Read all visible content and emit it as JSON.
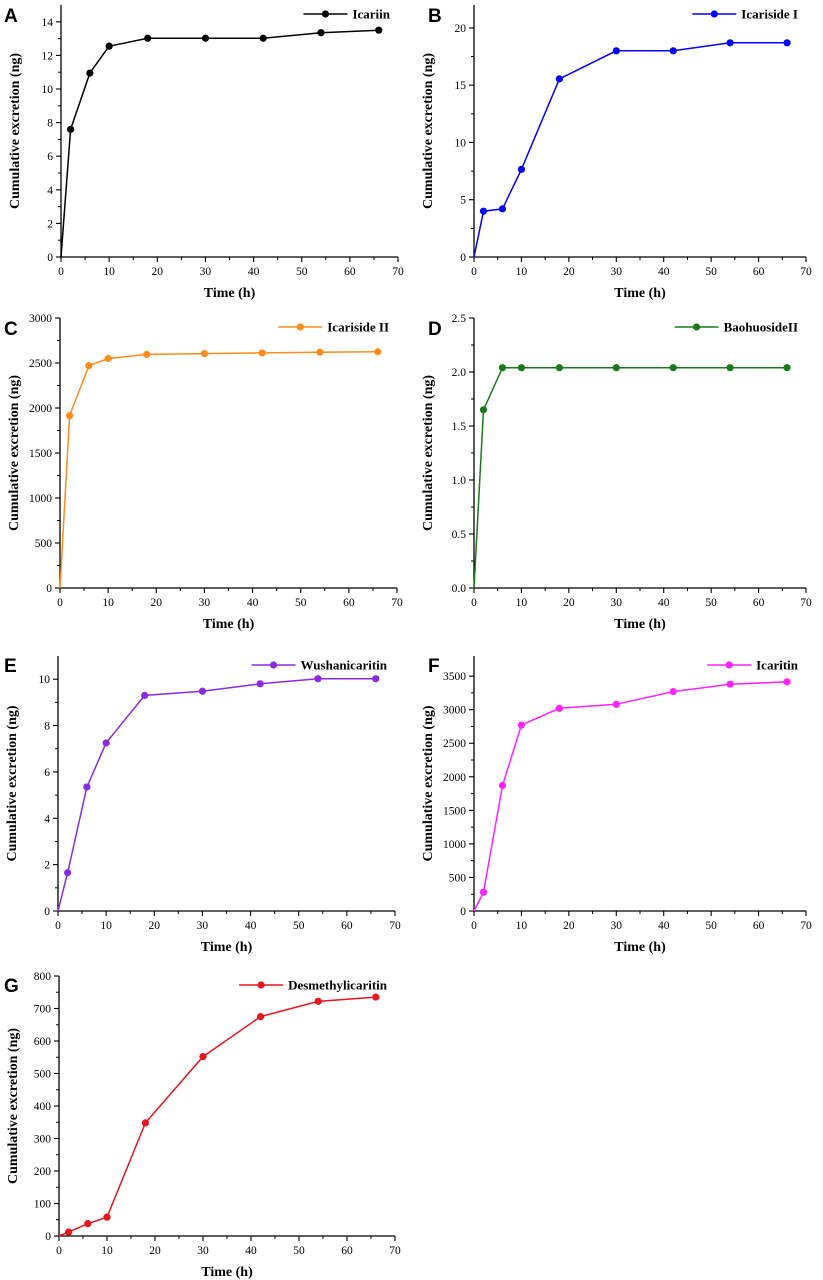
{
  "figure": {
    "title": ""
  },
  "chart_data": [
    {
      "panel": "A",
      "type": "line",
      "title": "",
      "legend": "Icariin",
      "color": "#000000",
      "x": [
        0,
        2,
        6,
        10,
        18,
        30,
        42,
        54,
        66
      ],
      "values": [
        0,
        7.6,
        10.95,
        12.55,
        13.02,
        13.02,
        13.02,
        13.35,
        13.5
      ],
      "xlabel": "Time (h)",
      "ylabel": "Cumulative excretion (ng)",
      "xlim": [
        0,
        70
      ],
      "ylim": [
        0,
        15
      ],
      "xticks": [
        0,
        10,
        20,
        30,
        40,
        50,
        60,
        70
      ],
      "xtick_labels": [
        "0",
        "10",
        "20",
        "30",
        "40",
        "50",
        "60",
        "70"
      ],
      "yticks": [
        0,
        2,
        4,
        6,
        8,
        10,
        12,
        14
      ],
      "ytick_labels": [
        "0",
        "2",
        "4",
        "6",
        "8",
        "10",
        "12",
        "14"
      ]
    },
    {
      "panel": "B",
      "type": "line",
      "title": "",
      "legend": "Icariside I",
      "color": "#0000ff",
      "x": [
        0,
        2,
        6,
        10,
        18,
        30,
        42,
        54,
        66
      ],
      "values": [
        0,
        4.0,
        4.2,
        7.65,
        15.55,
        18.0,
        18.0,
        18.7,
        18.7
      ],
      "xlabel": "Time (h)",
      "ylabel": "Cumulative excretion (ng)",
      "xlim": [
        0,
        70
      ],
      "ylim": [
        0,
        22
      ],
      "xticks": [
        0,
        10,
        20,
        30,
        40,
        50,
        60,
        70
      ],
      "xtick_labels": [
        "0",
        "10",
        "20",
        "30",
        "40",
        "50",
        "60",
        "70"
      ],
      "yticks": [
        0,
        5,
        10,
        15,
        20
      ],
      "ytick_labels": [
        "0",
        "5",
        "10",
        "15",
        "20"
      ]
    },
    {
      "panel": "C",
      "type": "line",
      "title": "",
      "legend": "Icariside II",
      "color": "#ff8c1a",
      "x": [
        0,
        2,
        6,
        10,
        18,
        30,
        42,
        54,
        66
      ],
      "values": [
        0,
        1915,
        2470,
        2550,
        2595,
        2605,
        2612,
        2620,
        2625
      ],
      "xlabel": "Time (h)",
      "ylabel": "Cumulative excretion (ng)",
      "xlim": [
        0,
        70
      ],
      "ylim": [
        0,
        3000
      ],
      "xticks": [
        0,
        10,
        20,
        30,
        40,
        50,
        60,
        70
      ],
      "xtick_labels": [
        "0",
        "10",
        "20",
        "30",
        "40",
        "50",
        "60",
        "70"
      ],
      "yticks": [
        0,
        500,
        1000,
        1500,
        2000,
        2500,
        3000
      ],
      "ytick_labels": [
        "0",
        "500",
        "1000",
        "1500",
        "2000",
        "2500",
        "3000"
      ]
    },
    {
      "panel": "D",
      "type": "line",
      "title": "",
      "legend": "BaohuosideII",
      "color": "#1a7a1a",
      "x": [
        0,
        2,
        6,
        10,
        18,
        30,
        42,
        54,
        66
      ],
      "values": [
        0,
        1.65,
        2.04,
        2.04,
        2.04,
        2.04,
        2.04,
        2.04,
        2.04
      ],
      "xlabel": "Time (h)",
      "ylabel": "Cumulative excretion (ng)",
      "xlim": [
        0,
        70
      ],
      "ylim": [
        0,
        2.5
      ],
      "xticks": [
        0,
        10,
        20,
        30,
        40,
        50,
        60,
        70
      ],
      "xtick_labels": [
        "0",
        "10",
        "20",
        "30",
        "40",
        "50",
        "60",
        "70"
      ],
      "yticks": [
        0,
        0.5,
        1.0,
        1.5,
        2.0,
        2.5
      ],
      "ytick_labels": [
        "0.0",
        "0.5",
        "1.0",
        "1.5",
        "2.0",
        "2.5"
      ]
    },
    {
      "panel": "E",
      "type": "line",
      "title": "",
      "legend": "Wushanicaritin",
      "color": "#8a2be2",
      "x": [
        0,
        2,
        6,
        10,
        18,
        30,
        42,
        54,
        66
      ],
      "values": [
        0,
        1.65,
        5.35,
        7.25,
        9.3,
        9.48,
        9.8,
        10.02,
        10.02
      ],
      "xlabel": "Time (h)",
      "ylabel": "Cumulative excretion (ng)",
      "xlim": [
        0,
        70
      ],
      "ylim": [
        0,
        11
      ],
      "xticks": [
        0,
        10,
        20,
        30,
        40,
        50,
        60,
        70
      ],
      "xtick_labels": [
        "0",
        "10",
        "20",
        "30",
        "40",
        "50",
        "60",
        "70"
      ],
      "yticks": [
        0,
        2,
        4,
        6,
        8,
        10
      ],
      "ytick_labels": [
        "0",
        "2",
        "4",
        "6",
        "8",
        "10"
      ]
    },
    {
      "panel": "F",
      "type": "line",
      "title": "",
      "legend": "Icaritin",
      "color": "#ff22ff",
      "x": [
        0,
        2,
        6,
        10,
        18,
        30,
        42,
        54,
        66
      ],
      "values": [
        0,
        280,
        1870,
        2770,
        3020,
        3080,
        3270,
        3380,
        3415
      ],
      "xlabel": "Time (h)",
      "ylabel": "Cumulative excretion (ng)",
      "xlim": [
        0,
        70
      ],
      "ylim": [
        0,
        3800
      ],
      "xticks": [
        0,
        10,
        20,
        30,
        40,
        50,
        60,
        70
      ],
      "xtick_labels": [
        "0",
        "10",
        "20",
        "30",
        "40",
        "50",
        "60",
        "70"
      ],
      "yticks": [
        0,
        500,
        1000,
        1500,
        2000,
        2500,
        3000,
        3500
      ],
      "ytick_labels": [
        "0",
        "500",
        "1000",
        "1500",
        "2000",
        "2500",
        "3000",
        "3500"
      ]
    },
    {
      "panel": "G",
      "type": "line",
      "title": "",
      "legend": "Desmethylicaritin",
      "color": "#e8141e",
      "x": [
        0,
        2,
        6,
        10,
        18,
        30,
        42,
        54,
        66
      ],
      "values": [
        0,
        12,
        38,
        58,
        348,
        552,
        675,
        722,
        735
      ],
      "xlabel": "Time (h)",
      "ylabel": "Cumulative excretion (ng)",
      "xlim": [
        0,
        70
      ],
      "ylim": [
        0,
        800
      ],
      "xticks": [
        0,
        10,
        20,
        30,
        40,
        50,
        60,
        70
      ],
      "xtick_labels": [
        "0",
        "10",
        "20",
        "30",
        "40",
        "50",
        "60",
        "70"
      ],
      "yticks": [
        0,
        100,
        200,
        300,
        400,
        500,
        600,
        700,
        800
      ],
      "ytick_labels": [
        "0",
        "100",
        "200",
        "300",
        "400",
        "500",
        "600",
        "700",
        "800"
      ]
    }
  ]
}
